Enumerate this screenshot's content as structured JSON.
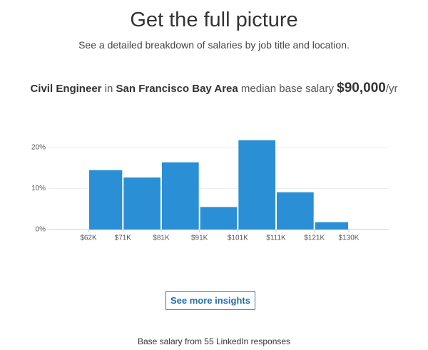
{
  "header": {
    "title": "Get the full picture",
    "subtitle": "See a detailed breakdown of salaries by job title and location."
  },
  "headline": {
    "job": "Civil Engineer",
    "in": "in",
    "location": "San Francisco Bay Area",
    "label": "median base salary",
    "salary": "$90,000",
    "unit": "/yr"
  },
  "chart_data": {
    "type": "histogram",
    "color": "#2a8fd4",
    "grid": true,
    "bins": [
      62000,
      71000,
      81000,
      91000,
      101000,
      111000,
      121000,
      130000
    ],
    "values": [
      14.5,
      12.7,
      16.4,
      5.5,
      21.8,
      9.1,
      1.8
    ],
    "xlim": [
      62000,
      130000
    ],
    "xticks": [
      {
        "value": 62000,
        "label": "$62K"
      },
      {
        "value": 71000,
        "label": "$71K"
      },
      {
        "value": 81000,
        "label": "$81K"
      },
      {
        "value": 91000,
        "label": "$91K"
      },
      {
        "value": 101000,
        "label": "$101K"
      },
      {
        "value": 111000,
        "label": "$111K"
      },
      {
        "value": 121000,
        "label": "$121K"
      },
      {
        "value": 130000,
        "label": "$130K"
      }
    ],
    "ylim": [
      0,
      25
    ],
    "yticks": [
      {
        "value": 0,
        "label": "0%"
      },
      {
        "value": 10,
        "label": "10%"
      },
      {
        "value": 20,
        "label": "20%"
      }
    ]
  },
  "button": "See more insights",
  "footer": "Base salary from 55 LinkedIn responses"
}
